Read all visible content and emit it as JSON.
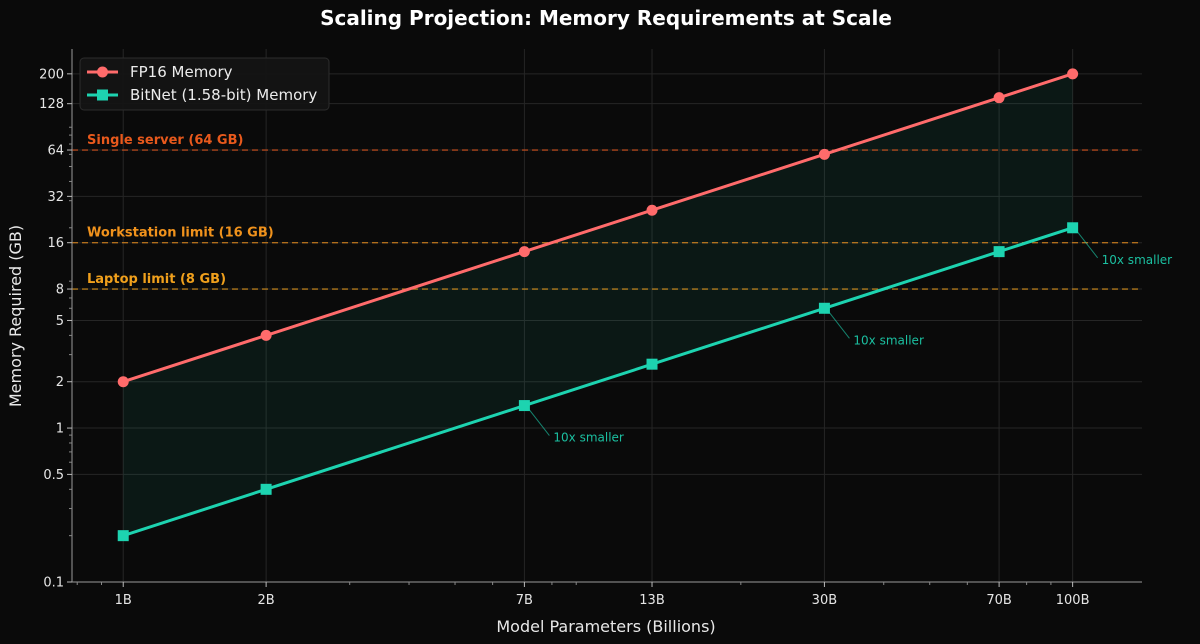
{
  "chart_data": {
    "type": "line",
    "title": "Scaling Projection: Memory Requirements at Scale",
    "xlabel": "Model Parameters (Billions)",
    "ylabel": "Memory Required (GB)",
    "x_scale": "log",
    "y_scale": "log",
    "x": [
      1,
      2,
      7,
      13,
      30,
      70,
      100
    ],
    "x_tick_labels": [
      "1B",
      "2B",
      "7B",
      "13B",
      "30B",
      "70B",
      "100B"
    ],
    "y_ticks": [
      0.1,
      0.5,
      1,
      2,
      5,
      8,
      16,
      32,
      64,
      128,
      200
    ],
    "y_tick_labels": [
      "0.1",
      "0.5",
      "1",
      "2",
      "5",
      "8",
      "16",
      "32",
      "64",
      "128",
      "200"
    ],
    "xlim": [
      0.78,
      140
    ],
    "ylim": [
      0.1,
      290
    ],
    "grid": true,
    "legend_position": "top-left",
    "series": [
      {
        "name": "FP16 Memory",
        "color": "#ff6b6b",
        "marker": "circle",
        "values": [
          2,
          4,
          14,
          26,
          60,
          140,
          200
        ]
      },
      {
        "name": "BitNet (1.58-bit) Memory",
        "color": "#1dd3b0",
        "marker": "square",
        "values": [
          0.2,
          0.4,
          1.4,
          2.6,
          6,
          14,
          20
        ]
      }
    ],
    "fill_between": {
      "color": "#1dd3b0"
    },
    "reference_lines": [
      {
        "label": "Single server (64 GB)",
        "y": 64,
        "color": "#e8591c"
      },
      {
        "label": "Workstation limit (16 GB)",
        "y": 16,
        "color": "#f0921c"
      },
      {
        "label": "Laptop limit (8 GB)",
        "y": 8,
        "color": "#f0a01c"
      }
    ],
    "annotations": [
      {
        "text": "10x smaller",
        "x": 7,
        "y": 1.4,
        "color": "#1dd3b0"
      },
      {
        "text": "10x smaller",
        "x": 30,
        "y": 6,
        "color": "#1dd3b0"
      },
      {
        "text": "10x smaller",
        "x": 100,
        "y": 20,
        "color": "#1dd3b0"
      }
    ]
  }
}
